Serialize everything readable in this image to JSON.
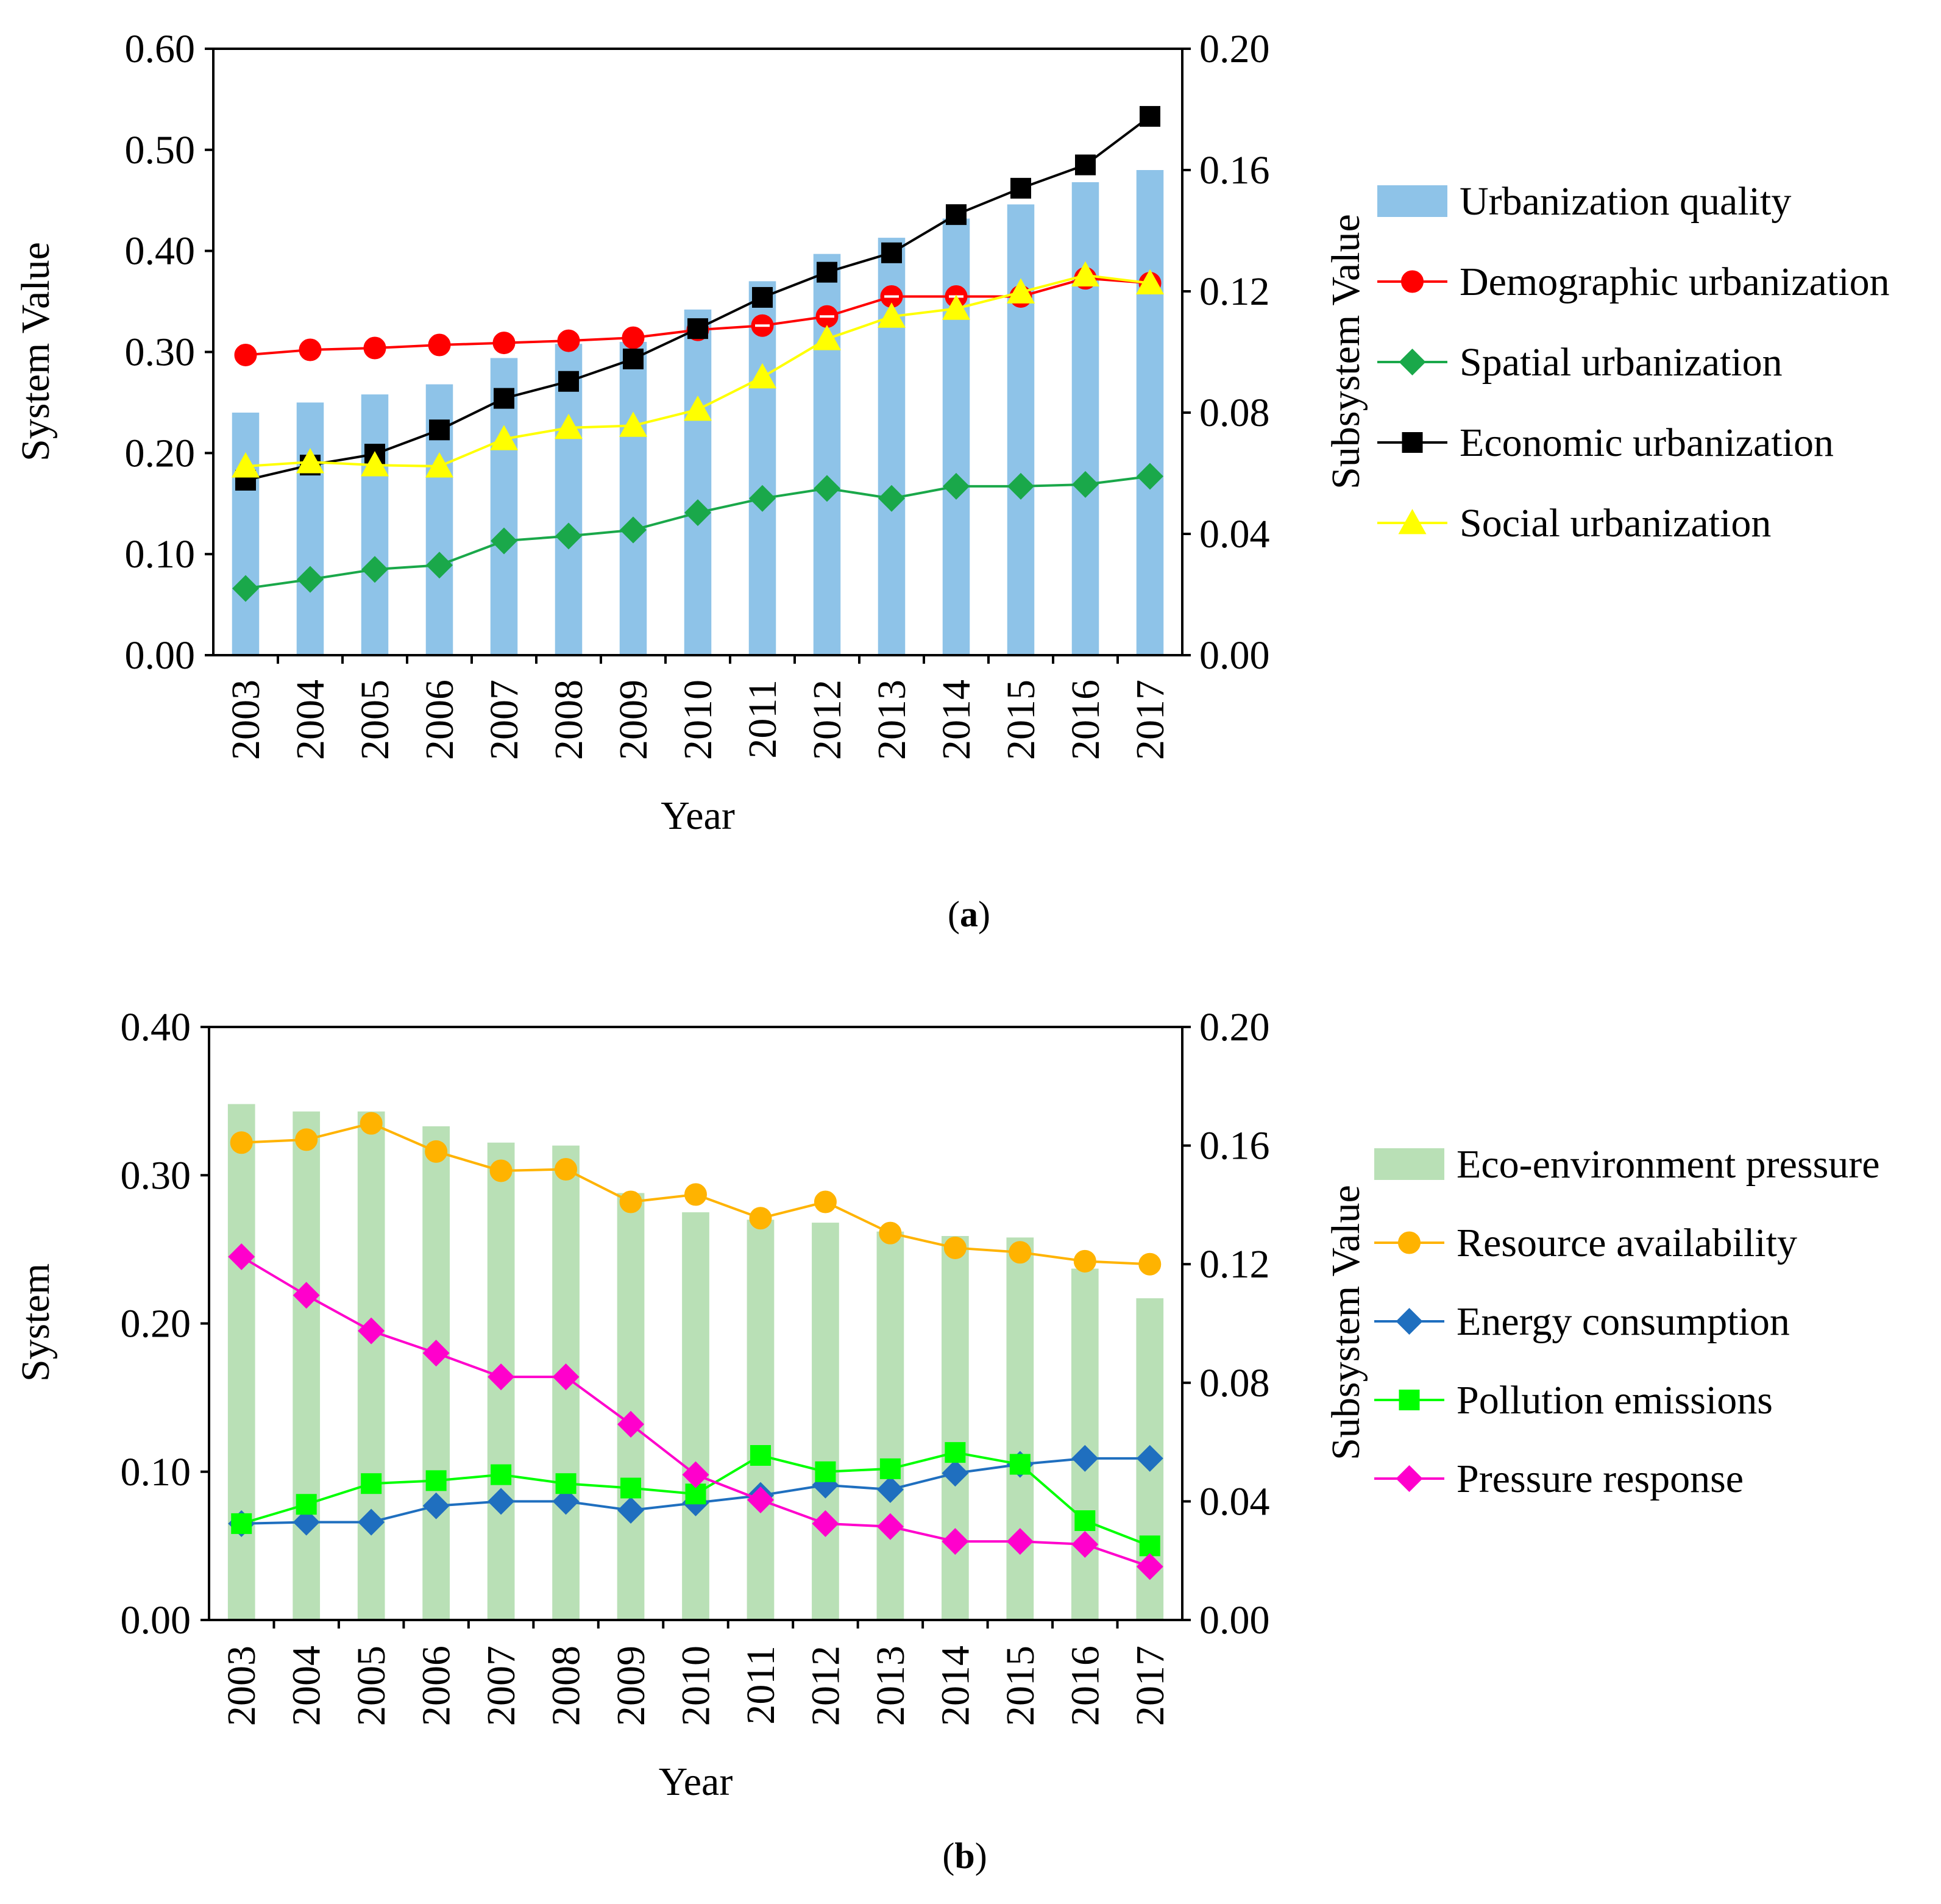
{
  "chart_data": [
    {
      "type": "bar",
      "panel_label": "a",
      "categories": [
        "2003",
        "2004",
        "2005",
        "2006",
        "2007",
        "2008",
        "2009",
        "2010",
        "2011",
        "2012",
        "2013",
        "2014",
        "2015",
        "2016",
        "2017"
      ],
      "xlabel": "Year",
      "ylabel": "System Value",
      "y2label": "Subsystem Value",
      "ylim": [
        0,
        0.6
      ],
      "y2lim": [
        0,
        0.2
      ],
      "yticks": [
        "0.00",
        "0.10",
        "0.20",
        "0.30",
        "0.40",
        "0.50",
        "0.60"
      ],
      "y2ticks": [
        "0.00",
        "0.04",
        "0.08",
        "0.12",
        "0.16",
        "0.20"
      ],
      "bar_series": {
        "name": "Urbanization quality",
        "axis": "left",
        "color": "#8ec3e8",
        "values": [
          0.24,
          0.25,
          0.258,
          0.268,
          0.294,
          0.308,
          0.31,
          0.342,
          0.37,
          0.397,
          0.413,
          0.432,
          0.446,
          0.468,
          0.48
        ]
      },
      "series": [
        {
          "name": "Demographic urbanization",
          "axis": "right",
          "color": "#ff0000",
          "marker": "circle",
          "values": [
            0.099,
            0.1007,
            0.1013,
            0.1023,
            0.103,
            0.1037,
            0.1047,
            0.1073,
            0.1087,
            0.1117,
            0.1183,
            0.1183,
            0.1183,
            0.1243,
            0.1227
          ]
        },
        {
          "name": "Spatial urbanization",
          "axis": "right",
          "color": "#1aa84a",
          "marker": "diamond",
          "values": [
            0.022,
            0.025,
            0.0283,
            0.0297,
            0.0377,
            0.0393,
            0.0413,
            0.047,
            0.0517,
            0.055,
            0.0517,
            0.0557,
            0.0557,
            0.0563,
            0.059
          ]
        },
        {
          "name": "Economic urbanization",
          "axis": "right",
          "color": "#000000",
          "marker": "square",
          "values": [
            0.0577,
            0.0627,
            0.0663,
            0.0743,
            0.0847,
            0.0903,
            0.0977,
            0.1077,
            0.118,
            0.1263,
            0.1327,
            0.1453,
            0.154,
            0.1617,
            0.1777
          ]
        },
        {
          "name": "Social urbanization",
          "axis": "right",
          "color": "#ffff00",
          "marker": "triangle",
          "values": [
            0.0623,
            0.0637,
            0.0627,
            0.0623,
            0.0713,
            0.075,
            0.0757,
            0.081,
            0.0917,
            0.1043,
            0.1117,
            0.1143,
            0.1197,
            0.1253,
            0.1227
          ]
        }
      ],
      "legend": "right"
    },
    {
      "type": "bar",
      "panel_label": "b",
      "categories": [
        "2003",
        "2004",
        "2005",
        "2006",
        "2007",
        "2008",
        "2009",
        "2010",
        "2011",
        "2012",
        "2013",
        "2014",
        "2015",
        "2016",
        "2017"
      ],
      "xlabel": "Year",
      "ylabel": "System",
      "y2label": "Subsystem Value",
      "ylim": [
        0,
        0.4
      ],
      "y2lim": [
        0,
        0.2
      ],
      "yticks": [
        "0.00",
        "0.10",
        "0.20",
        "0.30",
        "0.40"
      ],
      "y2ticks": [
        "0.00",
        "0.04",
        "0.08",
        "0.12",
        "0.16",
        "0.20"
      ],
      "bar_series": {
        "name": "Eco-environment pressure",
        "axis": "left",
        "color": "#b9e0b6",
        "values": [
          0.348,
          0.343,
          0.343,
          0.333,
          0.322,
          0.32,
          0.288,
          0.275,
          0.27,
          0.268,
          0.262,
          0.259,
          0.258,
          0.237,
          0.217
        ]
      },
      "series": [
        {
          "name": "Resource availability",
          "axis": "right",
          "color": "#ffb300",
          "marker": "circle",
          "values": [
            0.161,
            0.162,
            0.1675,
            0.158,
            0.1515,
            0.152,
            0.141,
            0.1435,
            0.1355,
            0.141,
            0.1305,
            0.1255,
            0.124,
            0.121,
            0.12
          ]
        },
        {
          "name": "Energy consumption",
          "axis": "right",
          "color": "#1f6fbf",
          "marker": "diamond",
          "values": [
            0.0325,
            0.033,
            0.033,
            0.0385,
            0.04,
            0.04,
            0.037,
            0.0395,
            0.042,
            0.0455,
            0.044,
            0.0495,
            0.0525,
            0.0545,
            0.0545
          ]
        },
        {
          "name": "Pollution emissions",
          "axis": "right",
          "color": "#00ff00",
          "marker": "square",
          "values": [
            0.0325,
            0.039,
            0.046,
            0.047,
            0.049,
            0.046,
            0.0445,
            0.0425,
            0.0555,
            0.05,
            0.051,
            0.0565,
            0.0525,
            0.0335,
            0.025
          ]
        },
        {
          "name": "Pressure response",
          "axis": "right",
          "color": "#ff00cc",
          "marker": "diamond",
          "values": [
            0.1225,
            0.1095,
            0.0975,
            0.09,
            0.082,
            0.082,
            0.066,
            0.049,
            0.0405,
            0.0325,
            0.0315,
            0.0265,
            0.0265,
            0.0255,
            0.018
          ]
        }
      ],
      "legend": "right"
    }
  ]
}
